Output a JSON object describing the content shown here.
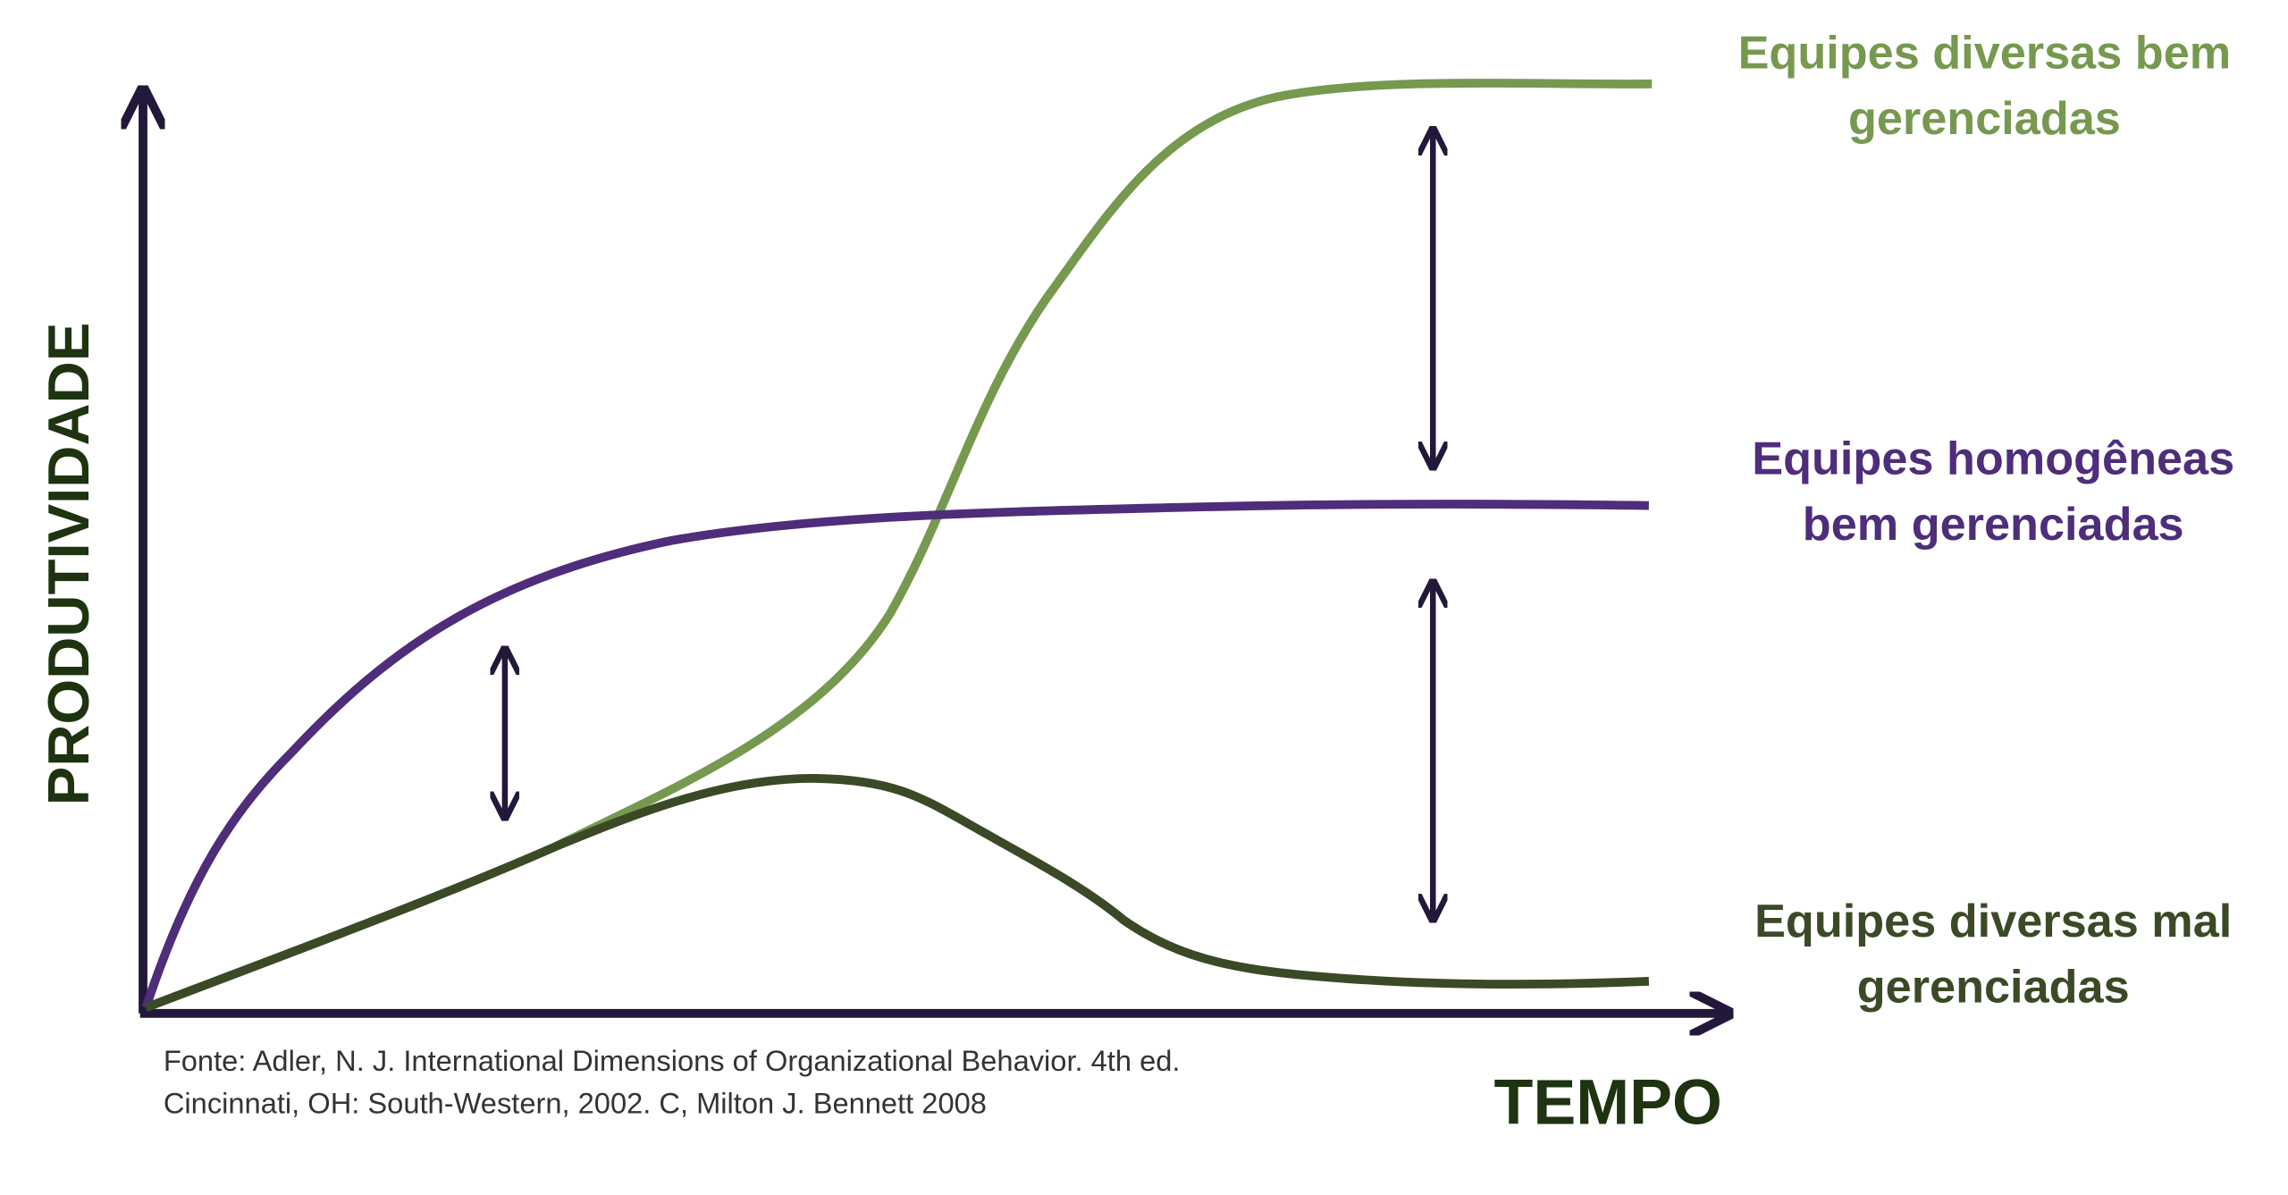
{
  "axes": {
    "y_label": "PRODUTIVIDADE",
    "x_label": "TEMPO"
  },
  "curves": [
    {
      "label": [
        "Equipes diversas bem",
        "gerenciadas"
      ]
    },
    {
      "label": [
        "Equipes homogêneas",
        "bem gerenciadas"
      ]
    },
    {
      "label": [
        "Equipes diversas mal",
        "gerenciadas"
      ]
    }
  ],
  "source": [
    "Fonte: Adler, N. J. International Dimensions of Organizational Behavior. 4th ed.",
    "Cincinnati, OH: South-Western, 2002. C, Milton J. Bennett 2008"
  ]
}
